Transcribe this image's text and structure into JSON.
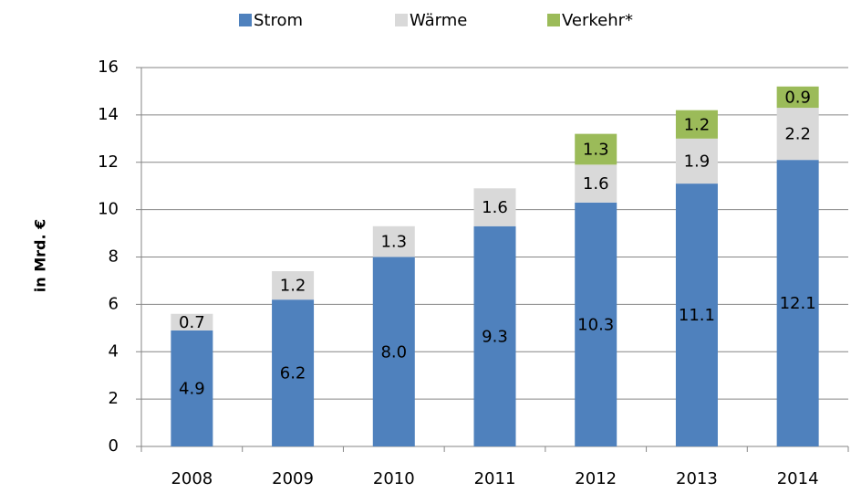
{
  "chart_data": {
    "type": "stacked-bar",
    "y_label": "in Mrd. €",
    "categories": [
      "2008",
      "2009",
      "2010",
      "2011",
      "2012",
      "2013",
      "2014"
    ],
    "series": [
      {
        "name": "Strom",
        "color": "#4f81bd",
        "values": [
          4.9,
          6.2,
          8.0,
          9.3,
          10.3,
          11.1,
          12.1
        ],
        "value_labels": [
          "4.9",
          "6.2",
          "8.0",
          "9.3",
          "10.3",
          "11.1",
          "12.1"
        ]
      },
      {
        "name": "Wärme",
        "color": "#d9d9d9",
        "values": [
          0.7,
          1.2,
          1.3,
          1.6,
          1.6,
          1.9,
          2.2
        ],
        "value_labels": [
          "0.7",
          "1.2",
          "1.3",
          "1.6",
          "1.6",
          "1.9",
          "2.2"
        ]
      },
      {
        "name": "Verkehr*",
        "color": "#9bbb59",
        "values": [
          null,
          null,
          null,
          null,
          1.3,
          1.2,
          0.9
        ],
        "value_labels": [
          null,
          null,
          null,
          null,
          "1.3",
          "1.2",
          "0.9"
        ]
      }
    ],
    "ylim": [
      0,
      16
    ],
    "yticks": [
      0,
      2,
      4,
      6,
      8,
      10,
      12,
      14,
      16
    ],
    "grid": true,
    "legend": "top"
  }
}
